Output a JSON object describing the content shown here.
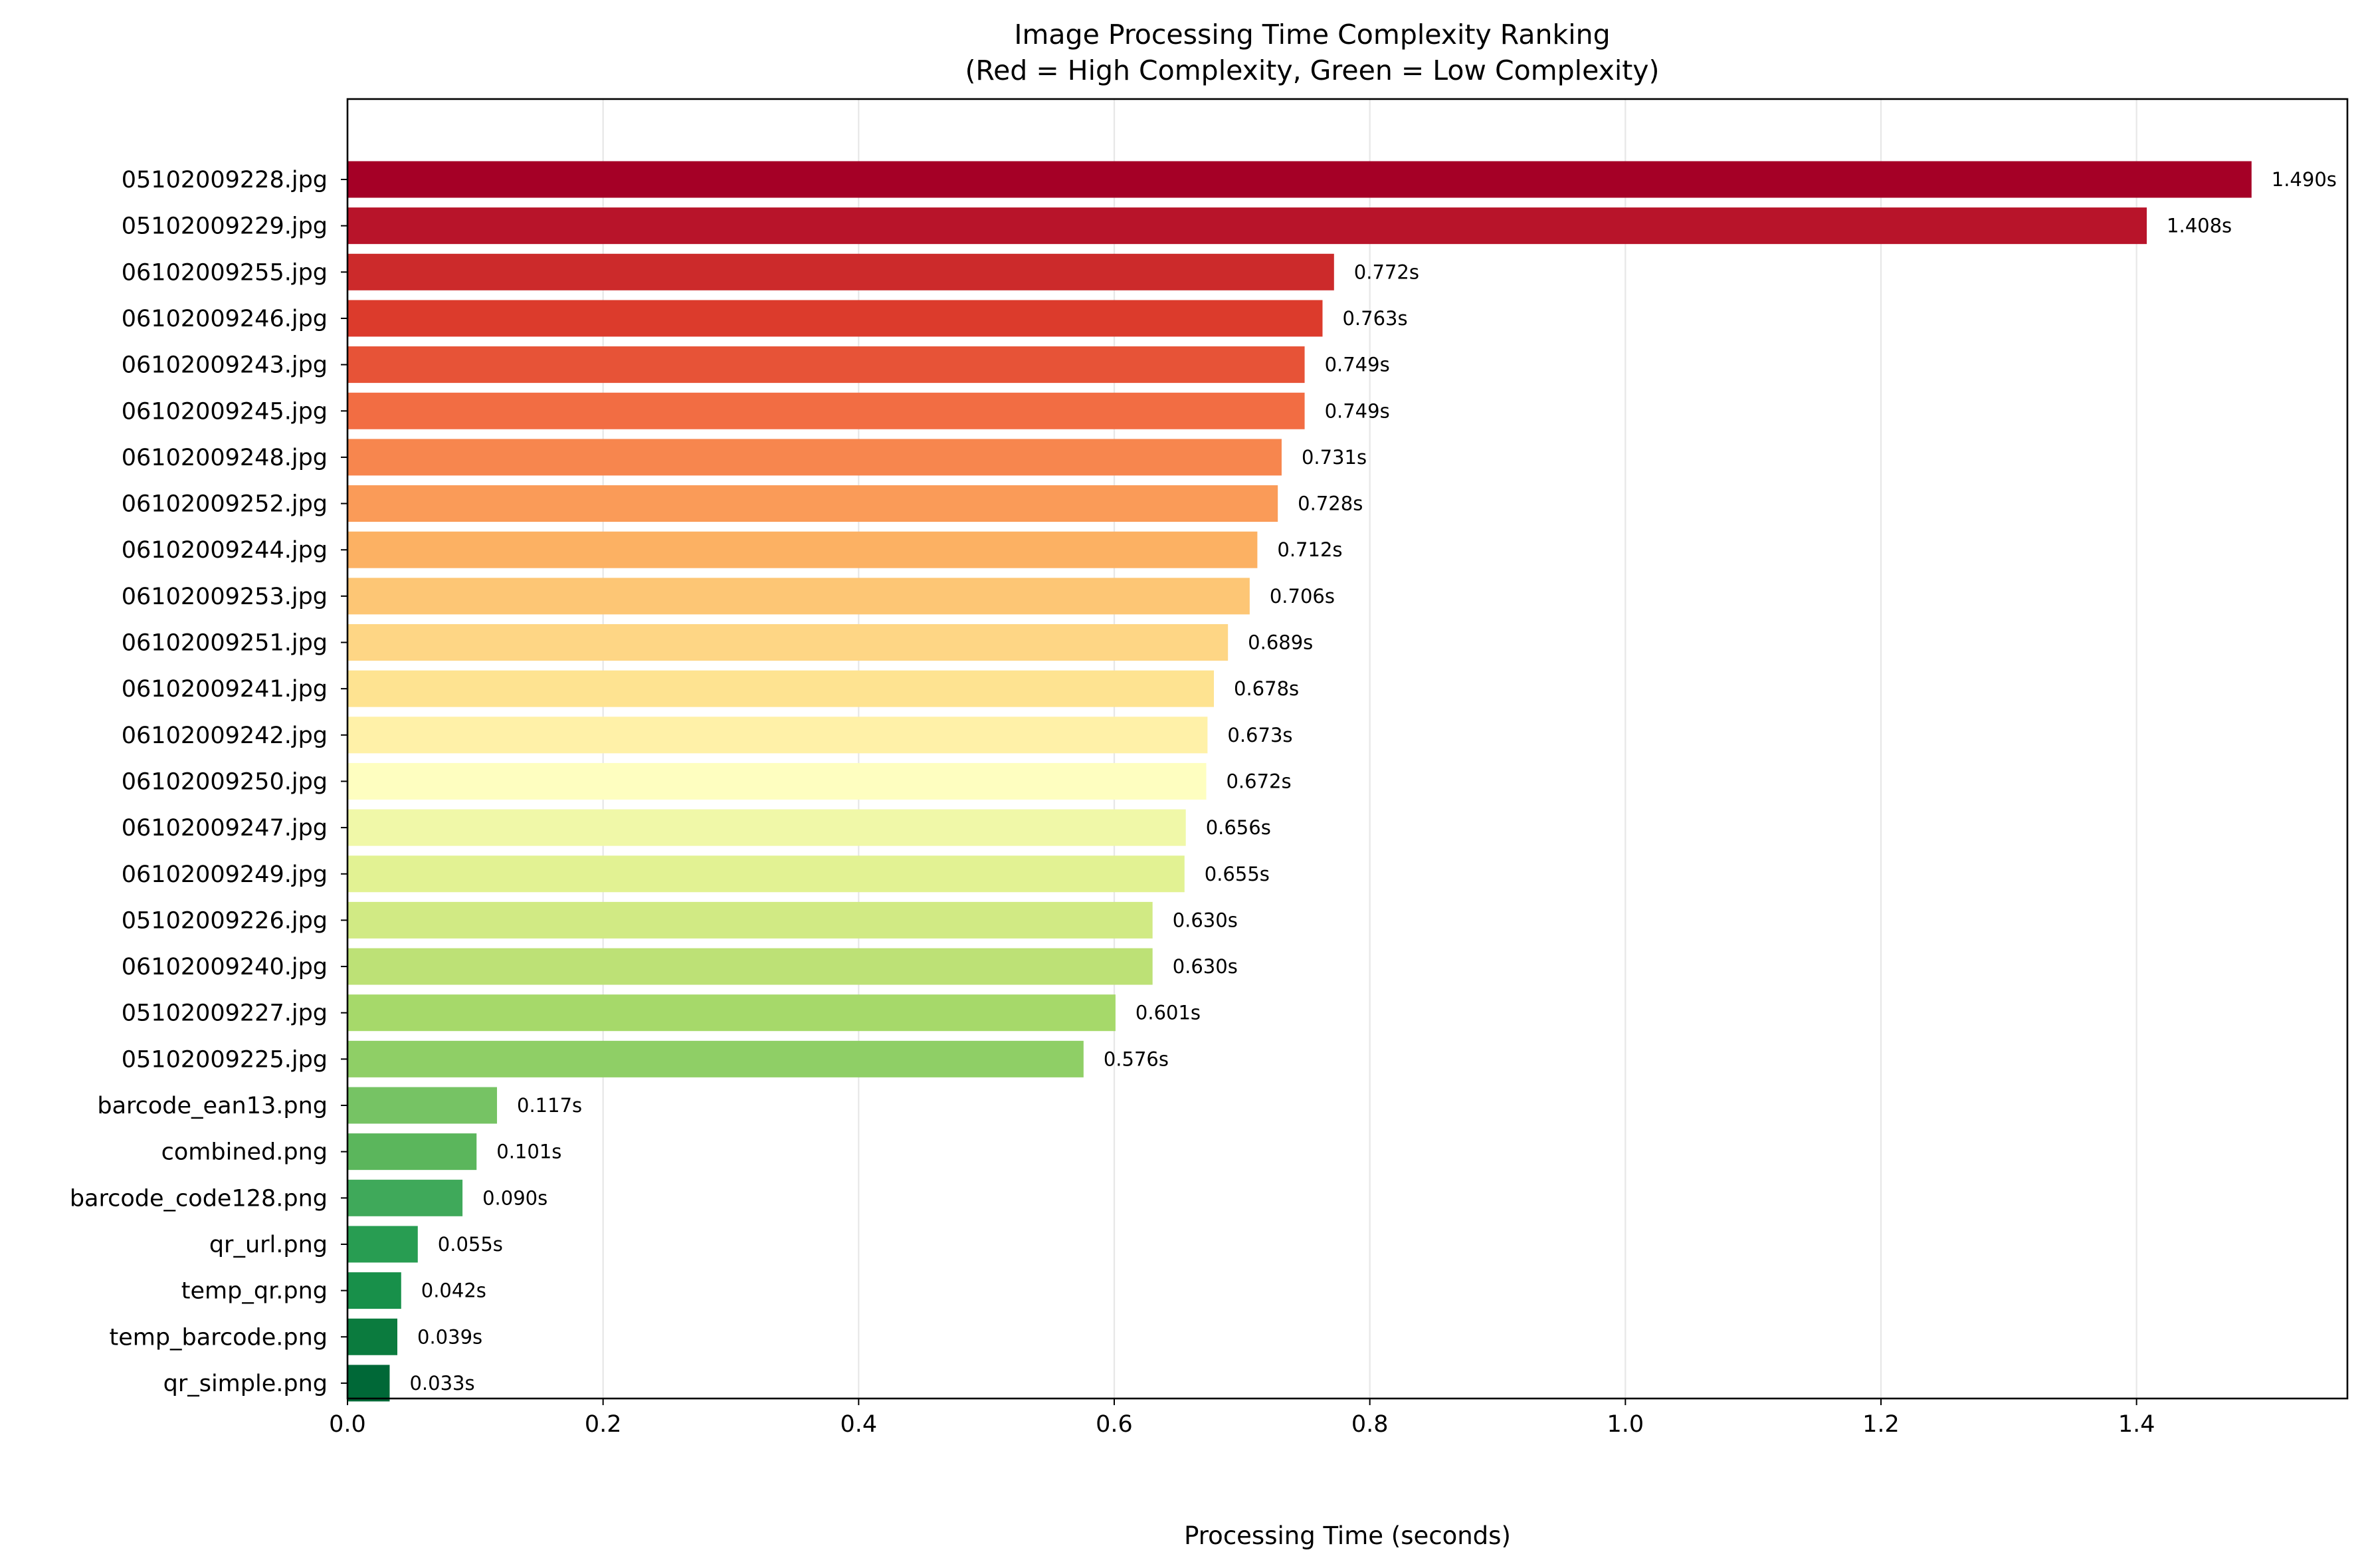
{
  "chart_data": {
    "type": "bar",
    "orientation": "horizontal",
    "title": "Image Processing Time Complexity Ranking",
    "subtitle": "(Red = High Complexity, Green = Low Complexity)",
    "xlabel": "Processing Time (seconds)",
    "ylabel": "",
    "xlim": [
      0,
      1.565
    ],
    "xticks": [
      0.0,
      0.2,
      0.4,
      0.6,
      0.8,
      1.0,
      1.2,
      1.4
    ],
    "xtick_labels": [
      "0.0",
      "0.2",
      "0.4",
      "0.6",
      "0.8",
      "1.0",
      "1.2",
      "1.4"
    ],
    "grid": "vertical",
    "value_label_suffix": "s",
    "categories": [
      "05102009228.jpg",
      "05102009229.jpg",
      "06102009255.jpg",
      "06102009246.jpg",
      "06102009243.jpg",
      "06102009245.jpg",
      "06102009248.jpg",
      "06102009252.jpg",
      "06102009244.jpg",
      "06102009253.jpg",
      "06102009251.jpg",
      "06102009241.jpg",
      "06102009242.jpg",
      "06102009250.jpg",
      "06102009247.jpg",
      "06102009249.jpg",
      "05102009226.jpg",
      "06102009240.jpg",
      "05102009227.jpg",
      "05102009225.jpg",
      "barcode_ean13.png",
      "combined.png",
      "barcode_code128.png",
      "qr_url.png",
      "temp_qr.png",
      "temp_barcode.png",
      "qr_simple.png"
    ],
    "values": [
      1.49,
      1.408,
      0.772,
      0.763,
      0.749,
      0.749,
      0.731,
      0.728,
      0.712,
      0.706,
      0.689,
      0.678,
      0.673,
      0.672,
      0.656,
      0.655,
      0.63,
      0.63,
      0.601,
      0.576,
      0.117,
      0.101,
      0.09,
      0.055,
      0.042,
      0.039,
      0.033
    ],
    "value_labels": [
      "1.490s",
      "1.408s",
      "0.772s",
      "0.763s",
      "0.749s",
      "0.749s",
      "0.731s",
      "0.728s",
      "0.712s",
      "0.706s",
      "0.689s",
      "0.678s",
      "0.673s",
      "0.672s",
      "0.656s",
      "0.655s",
      "0.630s",
      "0.630s",
      "0.601s",
      "0.576s",
      "0.117s",
      "0.101s",
      "0.090s",
      "0.055s",
      "0.042s",
      "0.039s",
      "0.033s"
    ],
    "colors": [
      "#a50026",
      "#b8142a",
      "#cc2a2b",
      "#dc3b2c",
      "#e75337",
      "#f26d43",
      "#f7864e",
      "#fa9b58",
      "#fcb163",
      "#fdc675",
      "#fed685",
      "#fee391",
      "#fff1a8",
      "#fefec0",
      "#f0f8a8",
      "#e2f293",
      "#d1ea84",
      "#bde176",
      "#a6d96a",
      "#8fcf66",
      "#76c364",
      "#5bb65c",
      "#3fa95a",
      "#289d52",
      "#18904a",
      "#0b7b3e",
      "#006837"
    ],
    "colors_meaning": {
      "high_complexity": "#a50026",
      "low_complexity": "#006837"
    }
  }
}
